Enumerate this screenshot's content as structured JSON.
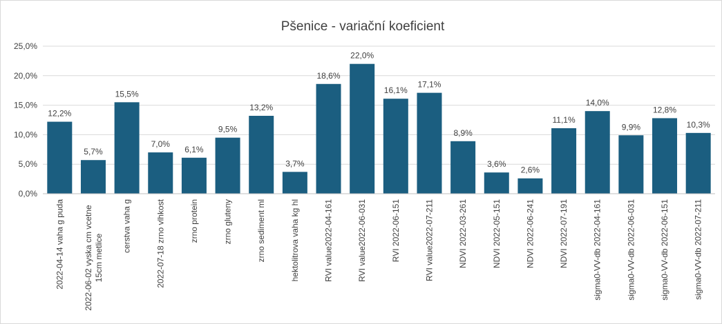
{
  "chart_data": {
    "type": "bar",
    "title": "Pšenice - variační koeficient",
    "categories": [
      "2022-04-14 vaha g puda",
      "2022-06-02 vyska cm vcetne 15cm metlice",
      "cerstva vaha g",
      "2022-07-18 zrno vlhkost",
      "zrno protein",
      "zrno gluteny",
      "zrno sediment ml",
      "hektolitrova vaha kg hl",
      "RVI value2022-04-161",
      "RVI value2022-06-031",
      "RVI 2022-06-151",
      "RVI value2022-07-211",
      "NDVI 2022-03-261",
      "NDVI 2022-05-151",
      "NDVI 2022-06-241",
      "NDVI 2022-07-191",
      "sigma0-VV-db 2022-04-161",
      "sigma0-VV-db 2022-06-031",
      "sigma0-VV-db 2022-06-151",
      "sigma0-VV-db 2022-07-211"
    ],
    "values": [
      12.2,
      5.7,
      15.5,
      7.0,
      6.1,
      9.5,
      13.2,
      3.7,
      18.6,
      22.0,
      16.1,
      17.1,
      8.9,
      3.6,
      2.6,
      11.1,
      14.0,
      9.9,
      12.8,
      10.3
    ],
    "value_labels": [
      "12,2%",
      "5,7%",
      "15,5%",
      "7,0%",
      "6,1%",
      "9,5%",
      "13,2%",
      "3,7%",
      "18,6%",
      "22,0%",
      "16,1%",
      "17,1%",
      "8,9%",
      "3,6%",
      "2,6%",
      "11,1%",
      "14,0%",
      "9,9%",
      "12,8%",
      "10,3%"
    ],
    "color": "#1b5e80",
    "ylim": [
      0,
      25
    ],
    "yticks": [
      {
        "value": 0,
        "label": "0,0%"
      },
      {
        "value": 5,
        "label": "5,0%"
      },
      {
        "value": 10,
        "label": "10,0%"
      },
      {
        "value": 15,
        "label": "15,0%"
      },
      {
        "value": 20,
        "label": "20,0%"
      },
      {
        "value": 25,
        "label": "25,0%"
      }
    ],
    "grid": true
  }
}
